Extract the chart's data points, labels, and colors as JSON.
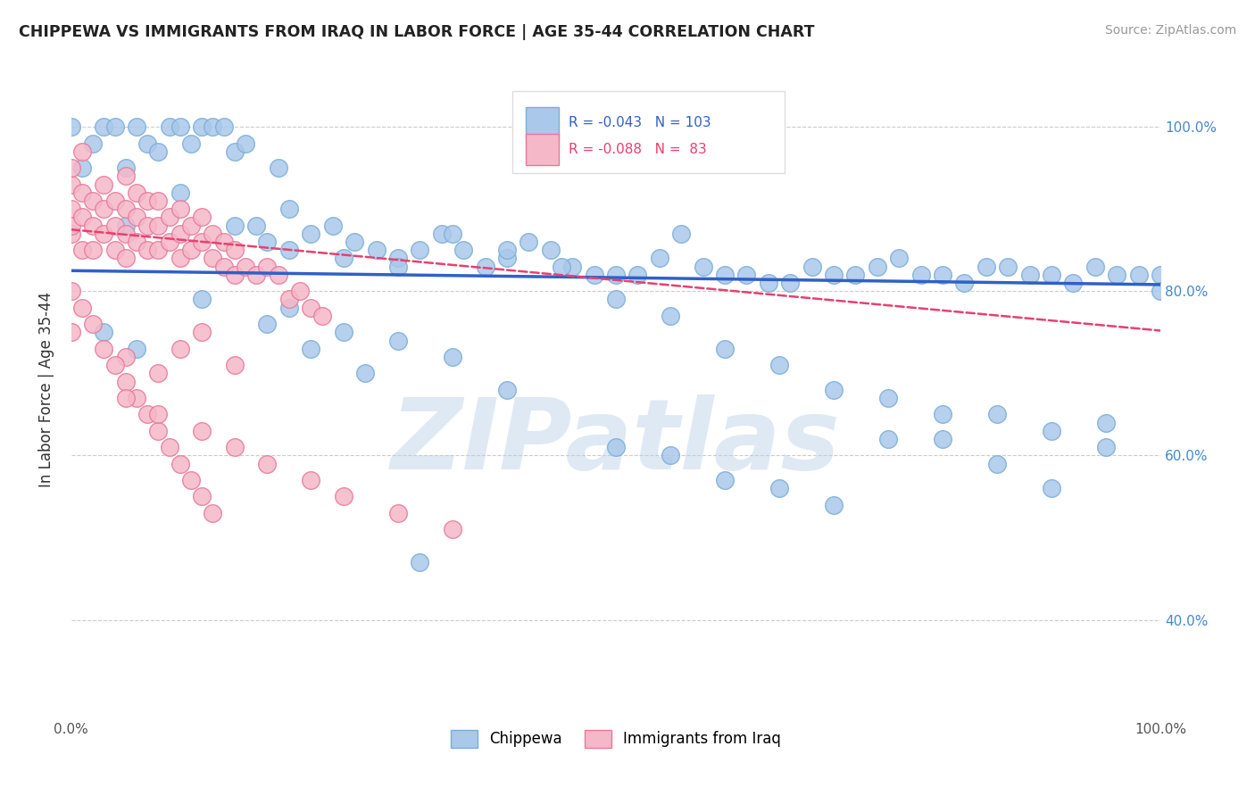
{
  "title": "CHIPPEWA VS IMMIGRANTS FROM IRAQ IN LABOR FORCE | AGE 35-44 CORRELATION CHART",
  "source": "Source: ZipAtlas.com",
  "ylabel": "In Labor Force | Age 35-44",
  "watermark": "ZIPatlas",
  "legend_label_blue": "Chippewa",
  "legend_label_pink": "Immigrants from Iraq",
  "blue_color": "#aac8ea",
  "blue_edge": "#7aaed6",
  "pink_color": "#f5b8c8",
  "pink_edge": "#e87898",
  "trend_blue_color": "#3060c8",
  "trend_pink_color": "#e84070",
  "background": "#ffffff",
  "grid_color": "#cccccc",
  "right_tick_color": "#4488cc",
  "blue_x": [
    0.0,
    0.01,
    0.02,
    0.03,
    0.04,
    0.05,
    0.06,
    0.07,
    0.08,
    0.09,
    0.1,
    0.11,
    0.12,
    0.13,
    0.14,
    0.15,
    0.16,
    0.17,
    0.18,
    0.19,
    0.2,
    0.22,
    0.24,
    0.26,
    0.28,
    0.3,
    0.32,
    0.34,
    0.36,
    0.38,
    0.4,
    0.42,
    0.44,
    0.46,
    0.48,
    0.5,
    0.52,
    0.54,
    0.56,
    0.58,
    0.6,
    0.62,
    0.64,
    0.66,
    0.68,
    0.7,
    0.72,
    0.74,
    0.76,
    0.78,
    0.8,
    0.82,
    0.84,
    0.86,
    0.88,
    0.9,
    0.92,
    0.94,
    0.96,
    0.98,
    1.0,
    0.05,
    0.1,
    0.15,
    0.2,
    0.25,
    0.3,
    0.35,
    0.4,
    0.45,
    0.5,
    0.55,
    0.6,
    0.65,
    0.7,
    0.75,
    0.8,
    0.85,
    0.9,
    0.95,
    0.2,
    0.25,
    0.3,
    0.35,
    0.4,
    0.5,
    0.55,
    0.6,
    0.65,
    0.7,
    0.75,
    0.8,
    0.85,
    0.9,
    0.95,
    1.0,
    0.03,
    0.06,
    0.12,
    0.18,
    0.22,
    0.27,
    0.32
  ],
  "blue_y": [
    1.0,
    0.95,
    0.98,
    1.0,
    1.0,
    0.95,
    1.0,
    0.98,
    0.97,
    1.0,
    1.0,
    0.98,
    1.0,
    1.0,
    1.0,
    0.97,
    0.98,
    0.88,
    0.86,
    0.95,
    0.9,
    0.87,
    0.88,
    0.86,
    0.85,
    0.84,
    0.85,
    0.87,
    0.85,
    0.83,
    0.84,
    0.86,
    0.85,
    0.83,
    0.82,
    0.82,
    0.82,
    0.84,
    0.87,
    0.83,
    0.82,
    0.82,
    0.81,
    0.81,
    0.83,
    0.82,
    0.82,
    0.83,
    0.84,
    0.82,
    0.82,
    0.81,
    0.83,
    0.83,
    0.82,
    0.82,
    0.81,
    0.83,
    0.82,
    0.82,
    0.82,
    0.88,
    0.92,
    0.88,
    0.85,
    0.84,
    0.83,
    0.87,
    0.85,
    0.83,
    0.79,
    0.77,
    0.73,
    0.71,
    0.68,
    0.67,
    0.65,
    0.65,
    0.63,
    0.64,
    0.78,
    0.75,
    0.74,
    0.72,
    0.68,
    0.61,
    0.6,
    0.57,
    0.56,
    0.54,
    0.62,
    0.62,
    0.59,
    0.56,
    0.61,
    0.8,
    0.75,
    0.73,
    0.79,
    0.76,
    0.73,
    0.7,
    0.47
  ],
  "pink_x": [
    0.0,
    0.0,
    0.0,
    0.0,
    0.0,
    0.01,
    0.01,
    0.01,
    0.01,
    0.02,
    0.02,
    0.02,
    0.03,
    0.03,
    0.03,
    0.04,
    0.04,
    0.04,
    0.05,
    0.05,
    0.05,
    0.05,
    0.06,
    0.06,
    0.06,
    0.07,
    0.07,
    0.07,
    0.08,
    0.08,
    0.08,
    0.09,
    0.09,
    0.1,
    0.1,
    0.1,
    0.11,
    0.11,
    0.12,
    0.12,
    0.13,
    0.13,
    0.14,
    0.14,
    0.15,
    0.15,
    0.16,
    0.17,
    0.18,
    0.19,
    0.2,
    0.21,
    0.22,
    0.23,
    0.05,
    0.08,
    0.1,
    0.12,
    0.15,
    0.0,
    0.0,
    0.01,
    0.02,
    0.03,
    0.04,
    0.05,
    0.06,
    0.07,
    0.08,
    0.09,
    0.1,
    0.11,
    0.12,
    0.13,
    0.05,
    0.08,
    0.12,
    0.15,
    0.18,
    0.22,
    0.25,
    0.3,
    0.35
  ],
  "pink_y": [
    0.93,
    0.9,
    0.87,
    0.95,
    0.88,
    0.92,
    0.89,
    0.85,
    0.97,
    0.91,
    0.88,
    0.85,
    0.93,
    0.9,
    0.87,
    0.91,
    0.88,
    0.85,
    0.94,
    0.9,
    0.87,
    0.84,
    0.92,
    0.89,
    0.86,
    0.91,
    0.88,
    0.85,
    0.91,
    0.88,
    0.85,
    0.89,
    0.86,
    0.9,
    0.87,
    0.84,
    0.88,
    0.85,
    0.89,
    0.86,
    0.87,
    0.84,
    0.86,
    0.83,
    0.85,
    0.82,
    0.83,
    0.82,
    0.83,
    0.82,
    0.79,
    0.8,
    0.78,
    0.77,
    0.72,
    0.7,
    0.73,
    0.75,
    0.71,
    0.8,
    0.75,
    0.78,
    0.76,
    0.73,
    0.71,
    0.69,
    0.67,
    0.65,
    0.63,
    0.61,
    0.59,
    0.57,
    0.55,
    0.53,
    0.67,
    0.65,
    0.63,
    0.61,
    0.59,
    0.57,
    0.55,
    0.53,
    0.51
  ]
}
